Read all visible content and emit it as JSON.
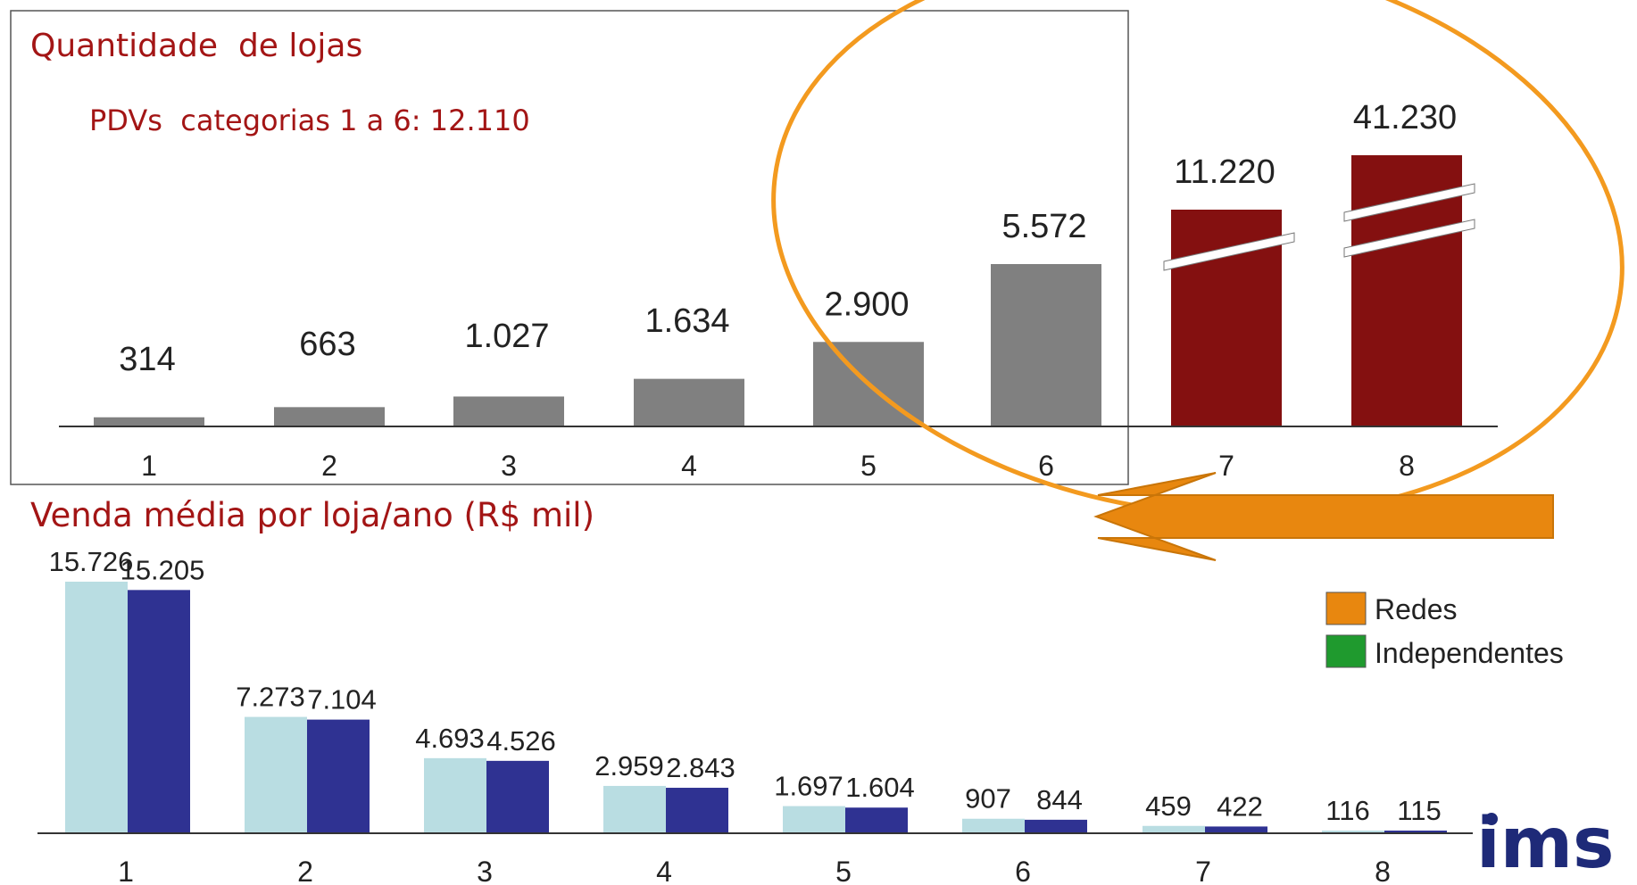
{
  "colors": {
    "title": "#a31515",
    "bar_gray": "#808080",
    "bar_darkred": "#841010",
    "bar_light": "#b9dde2",
    "bar_navy": "#2f3292",
    "ellipse": "#f39a1f",
    "arrow": "#e8870f",
    "legend_redes": "#e8870f",
    "legend_independentes": "#1f9a2e",
    "logo": "#1e2a78"
  },
  "logo_text": "ims",
  "chart_data": [
    {
      "type": "bar",
      "title": "Quantidade  de lojas",
      "subtitle": "PDVs  categorias 1 a 6: 12.110",
      "categories": [
        "1",
        "2",
        "3",
        "4",
        "5",
        "6",
        "7",
        "8"
      ],
      "values": [
        314,
        663,
        1027,
        1634,
        2900,
        5572,
        11220,
        41230
      ],
      "value_labels": [
        "314",
        "663",
        "1.027",
        "1.634",
        "2.900",
        "5.572",
        "11.220",
        "41.230"
      ],
      "highlighted_categories": [
        "7",
        "8"
      ],
      "broken_axis_categories": [
        "7",
        "8"
      ],
      "grid": false
    },
    {
      "type": "bar",
      "title": "Venda média por loja/ano (R$ mil)",
      "categories": [
        "1",
        "2",
        "3",
        "4",
        "5",
        "6",
        "7",
        "8"
      ],
      "series": [
        {
          "values": [
            15726,
            7273,
            4693,
            2959,
            1697,
            907,
            459,
            116
          ],
          "labels": [
            "15.726",
            "7.273",
            "4.693",
            "2.959",
            "1.697",
            "907",
            "459",
            "116"
          ]
        },
        {
          "values": [
            15205,
            7104,
            4526,
            2843,
            1604,
            844,
            422,
            115
          ],
          "labels": [
            "15.205",
            "7.104",
            "4.526",
            "2.843",
            "1.604",
            "844",
            "422",
            "115"
          ]
        }
      ],
      "grid": false
    }
  ],
  "legend": {
    "placement": "right",
    "items": [
      {
        "label": "Redes",
        "color": "#e8870f"
      },
      {
        "label": "Independentes",
        "color": "#1f9a2e"
      }
    ]
  }
}
